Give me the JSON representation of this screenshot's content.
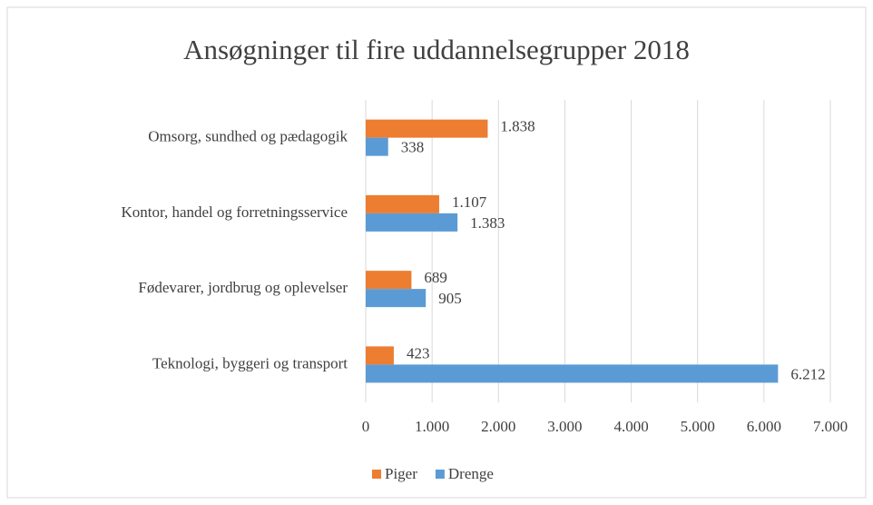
{
  "chart_data": {
    "type": "bar",
    "orientation": "horizontal",
    "title": "Ansøgninger til fire uddannelsegrupper 2018",
    "categories": [
      "Omsorg, sundhed og pædagogik",
      "Kontor, handel og forretningsservice",
      "Fødevarer, jordbrug og oplevelser",
      "Teknologi, byggeri og transport"
    ],
    "series": [
      {
        "name": "Piger",
        "color": "#ed7d31",
        "values": [
          1838,
          1107,
          689,
          423
        ],
        "value_labels": [
          "1.838",
          "1.107",
          "689",
          "423"
        ]
      },
      {
        "name": "Drenge",
        "color": "#5b9bd5",
        "values": [
          338,
          1383,
          905,
          6212
        ],
        "value_labels": [
          "338",
          "1.383",
          "905",
          "6.212"
        ]
      }
    ],
    "xlim": [
      0,
      7000
    ],
    "xticks": [
      0,
      {
        "value": 1000,
        "label": "1.000"
      },
      {
        "value": 2000,
        "label": "2.000"
      },
      {
        "value": 3000,
        "label": "3.000"
      },
      {
        "value": 4000,
        "label": "4.000"
      },
      {
        "value": 5000,
        "label": "5.000"
      },
      {
        "value": 6000,
        "label": "6.000"
      },
      {
        "value": 7000,
        "label": "7.000"
      }
    ],
    "grid": true,
    "legend": "bottom"
  }
}
